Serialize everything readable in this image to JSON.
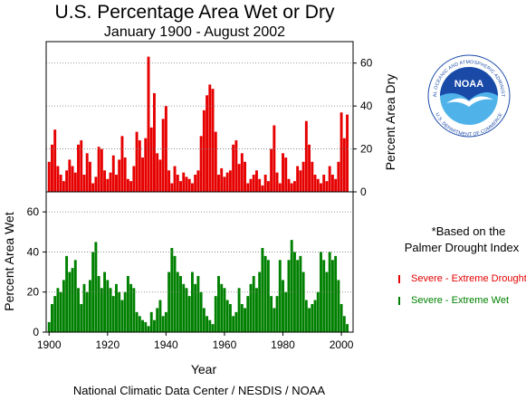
{
  "header": {
    "title": "U.S. Percentage Area Wet or Dry",
    "subtitle": "January 1900 - August 2002"
  },
  "footer": {
    "credit": "National Climatic Data Center / NESDIS / NOAA"
  },
  "logo": {
    "text": "NOAA",
    "ring_top": "NATIONAL OCEANIC AND ATMOSPHERIC ADMINISTRATION",
    "ring_bottom": "U.S. DEPARTMENT OF COMMERCE"
  },
  "note": {
    "line1": "*Based on the",
    "line2": "Palmer Drought Index"
  },
  "colors": {
    "dry": "#e60000",
    "wet": "#008000",
    "noaa_blue": "#1a4aa8",
    "noaa_light": "#4fb3ea"
  },
  "chart_data": [
    {
      "type": "bar",
      "series": [
        {
          "name": "Severe - Extreme Drought",
          "color": "#e60000",
          "values": [
            [
              1900,
              14
            ],
            [
              1901,
              22
            ],
            [
              1902,
              29
            ],
            [
              1903,
              12
            ],
            [
              1904,
              8
            ],
            [
              1905,
              5
            ],
            [
              1906,
              10
            ],
            [
              1907,
              15
            ],
            [
              1908,
              12
            ],
            [
              1909,
              9
            ],
            [
              1910,
              22
            ],
            [
              1911,
              24
            ],
            [
              1912,
              8
            ],
            [
              1913,
              18
            ],
            [
              1914,
              14
            ],
            [
              1915,
              4
            ],
            [
              1916,
              7
            ],
            [
              1917,
              21
            ],
            [
              1918,
              20
            ],
            [
              1919,
              10
            ],
            [
              1920,
              6
            ],
            [
              1921,
              9
            ],
            [
              1922,
              17
            ],
            [
              1923,
              8
            ],
            [
              1924,
              15
            ],
            [
              1925,
              26
            ],
            [
              1926,
              16
            ],
            [
              1927,
              6
            ],
            [
              1928,
              5
            ],
            [
              1929,
              12
            ],
            [
              1930,
              28
            ],
            [
              1931,
              24
            ],
            [
              1932,
              16
            ],
            [
              1933,
              25
            ],
            [
              1934,
              63
            ],
            [
              1935,
              30
            ],
            [
              1936,
              46
            ],
            [
              1937,
              18
            ],
            [
              1938,
              15
            ],
            [
              1939,
              34
            ],
            [
              1940,
              40
            ],
            [
              1941,
              10
            ],
            [
              1942,
              4
            ],
            [
              1943,
              12
            ],
            [
              1944,
              8
            ],
            [
              1945,
              5
            ],
            [
              1946,
              9
            ],
            [
              1947,
              7
            ],
            [
              1948,
              6
            ],
            [
              1949,
              4
            ],
            [
              1950,
              8
            ],
            [
              1951,
              10
            ],
            [
              1952,
              26
            ],
            [
              1953,
              38
            ],
            [
              1954,
              45
            ],
            [
              1955,
              50
            ],
            [
              1956,
              48
            ],
            [
              1957,
              28
            ],
            [
              1958,
              8
            ],
            [
              1959,
              11
            ],
            [
              1960,
              7
            ],
            [
              1961,
              9
            ],
            [
              1962,
              10
            ],
            [
              1963,
              22
            ],
            [
              1964,
              24
            ],
            [
              1965,
              13
            ],
            [
              1966,
              18
            ],
            [
              1967,
              14
            ],
            [
              1968,
              4
            ],
            [
              1969,
              6
            ],
            [
              1970,
              8
            ],
            [
              1971,
              10
            ],
            [
              1972,
              6
            ],
            [
              1973,
              3
            ],
            [
              1974,
              8
            ],
            [
              1975,
              5
            ],
            [
              1976,
              20
            ],
            [
              1977,
              31
            ],
            [
              1978,
              9
            ],
            [
              1979,
              4
            ],
            [
              1980,
              18
            ],
            [
              1981,
              16
            ],
            [
              1982,
              6
            ],
            [
              1983,
              4
            ],
            [
              1984,
              5
            ],
            [
              1985,
              12
            ],
            [
              1986,
              10
            ],
            [
              1987,
              14
            ],
            [
              1988,
              33
            ],
            [
              1989,
              22
            ],
            [
              1990,
              14
            ],
            [
              1991,
              8
            ],
            [
              1992,
              6
            ],
            [
              1993,
              4
            ],
            [
              1994,
              8
            ],
            [
              1995,
              5
            ],
            [
              1996,
              12
            ],
            [
              1997,
              8
            ],
            [
              1998,
              6
            ],
            [
              1999,
              14
            ],
            [
              2000,
              37
            ],
            [
              2001,
              25
            ],
            [
              2002,
              36
            ]
          ]
        }
      ],
      "ylabel": "Percent Area Dry",
      "ylim": [
        0,
        70
      ],
      "yticks": [
        0,
        20,
        40,
        60
      ],
      "xlim": [
        1899,
        2004
      ],
      "grid": "horizontal dotted"
    },
    {
      "type": "bar",
      "series": [
        {
          "name": "Severe - Extreme Wet",
          "color": "#008000",
          "values": [
            [
              1900,
              5
            ],
            [
              1901,
              14
            ],
            [
              1902,
              18
            ],
            [
              1903,
              22
            ],
            [
              1904,
              20
            ],
            [
              1905,
              26
            ],
            [
              1906,
              38
            ],
            [
              1907,
              30
            ],
            [
              1908,
              32
            ],
            [
              1909,
              36
            ],
            [
              1910,
              22
            ],
            [
              1911,
              14
            ],
            [
              1912,
              24
            ],
            [
              1913,
              20
            ],
            [
              1914,
              26
            ],
            [
              1915,
              40
            ],
            [
              1916,
              45
            ],
            [
              1917,
              28
            ],
            [
              1918,
              22
            ],
            [
              1919,
              30
            ],
            [
              1920,
              26
            ],
            [
              1921,
              22
            ],
            [
              1922,
              18
            ],
            [
              1923,
              24
            ],
            [
              1924,
              20
            ],
            [
              1925,
              16
            ],
            [
              1926,
              20
            ],
            [
              1927,
              28
            ],
            [
              1928,
              24
            ],
            [
              1929,
              22
            ],
            [
              1930,
              10
            ],
            [
              1931,
              8
            ],
            [
              1932,
              6
            ],
            [
              1933,
              5
            ],
            [
              1934,
              3
            ],
            [
              1935,
              10
            ],
            [
              1936,
              6
            ],
            [
              1937,
              12
            ],
            [
              1938,
              16
            ],
            [
              1939,
              8
            ],
            [
              1940,
              10
            ],
            [
              1941,
              30
            ],
            [
              1942,
              42
            ],
            [
              1943,
              38
            ],
            [
              1944,
              30
            ],
            [
              1945,
              28
            ],
            [
              1946,
              24
            ],
            [
              1947,
              22
            ],
            [
              1948,
              18
            ],
            [
              1949,
              30
            ],
            [
              1950,
              24
            ],
            [
              1951,
              28
            ],
            [
              1952,
              20
            ],
            [
              1953,
              12
            ],
            [
              1954,
              8
            ],
            [
              1955,
              6
            ],
            [
              1956,
              4
            ],
            [
              1957,
              18
            ],
            [
              1958,
              28
            ],
            [
              1959,
              24
            ],
            [
              1960,
              22
            ],
            [
              1961,
              16
            ],
            [
              1962,
              14
            ],
            [
              1963,
              8
            ],
            [
              1964,
              10
            ],
            [
              1965,
              22
            ],
            [
              1966,
              14
            ],
            [
              1967,
              12
            ],
            [
              1968,
              18
            ],
            [
              1969,
              24
            ],
            [
              1970,
              28
            ],
            [
              1971,
              22
            ],
            [
              1972,
              30
            ],
            [
              1973,
              42
            ],
            [
              1974,
              38
            ],
            [
              1975,
              36
            ],
            [
              1976,
              18
            ],
            [
              1977,
              12
            ],
            [
              1978,
              18
            ],
            [
              1979,
              36
            ],
            [
              1980,
              26
            ],
            [
              1981,
              20
            ],
            [
              1982,
              36
            ],
            [
              1983,
              46
            ],
            [
              1984,
              40
            ],
            [
              1985,
              36
            ],
            [
              1986,
              38
            ],
            [
              1987,
              30
            ],
            [
              1988,
              16
            ],
            [
              1989,
              12
            ],
            [
              1990,
              14
            ],
            [
              1991,
              16
            ],
            [
              1992,
              20
            ],
            [
              1993,
              40
            ],
            [
              1994,
              36
            ],
            [
              1995,
              30
            ],
            [
              1996,
              40
            ],
            [
              1997,
              36
            ],
            [
              1998,
              38
            ],
            [
              1999,
              26
            ],
            [
              2000,
              14
            ],
            [
              2001,
              8
            ],
            [
              2002,
              4
            ]
          ]
        }
      ],
      "ylabel": "Percent Area Wet",
      "ylim": [
        0,
        70
      ],
      "yticks": [
        0,
        20,
        40,
        60
      ],
      "xlabel": "Year",
      "xlim": [
        1899,
        2004
      ],
      "xticks": [
        1900,
        1920,
        1940,
        1960,
        1980,
        2000
      ],
      "grid": "horizontal dotted"
    }
  ]
}
